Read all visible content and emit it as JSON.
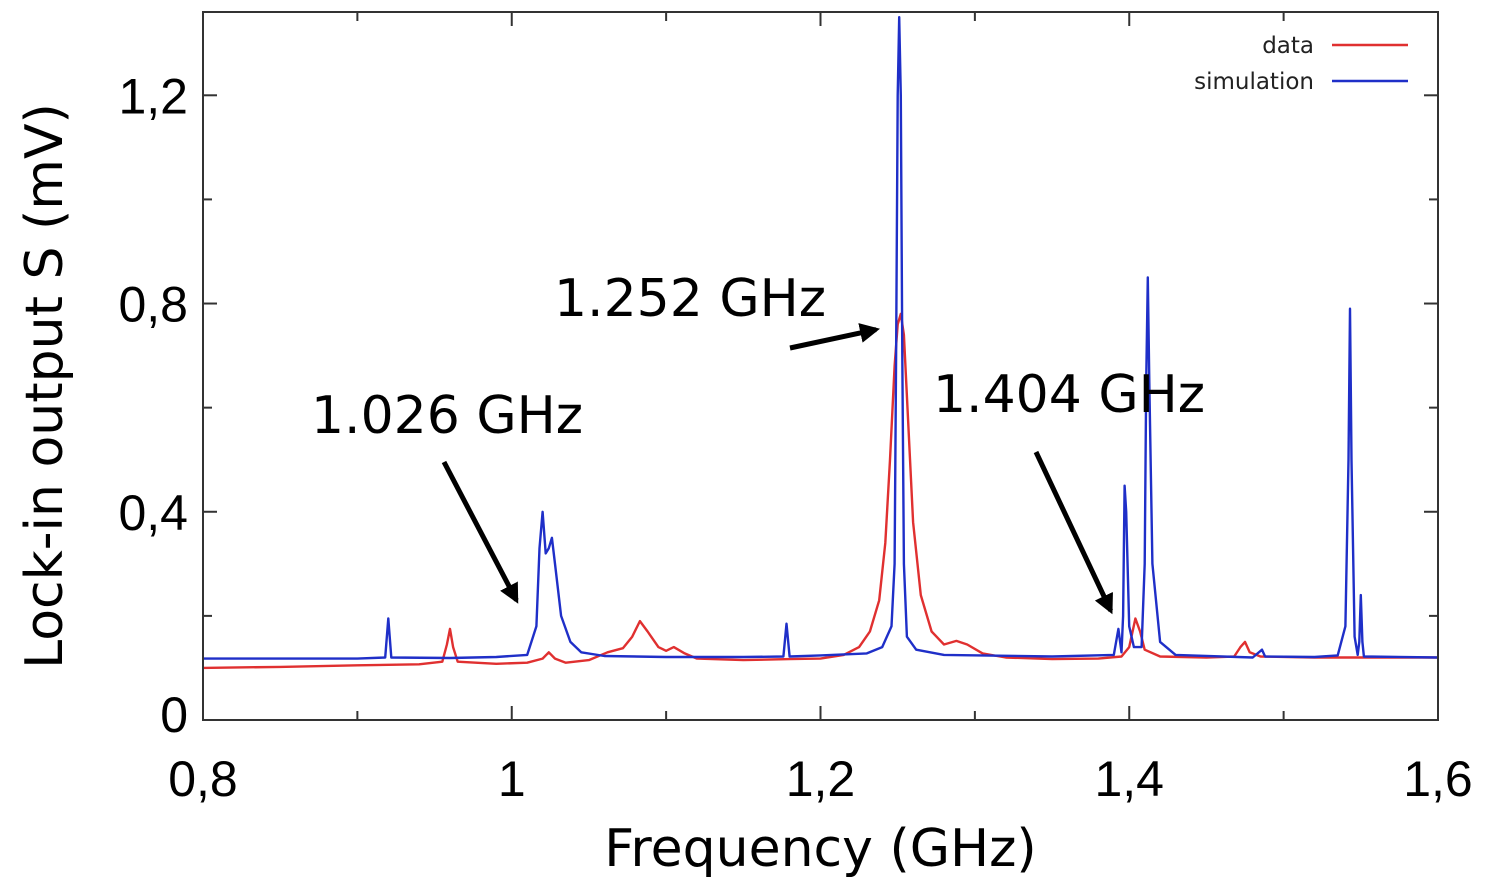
{
  "chart_data": {
    "type": "line",
    "title": "",
    "xlabel": "Frequency (GHz)",
    "ylabel": "Lock-in output S (mV)",
    "xlim": [
      0.8,
      1.6
    ],
    "ylim": [
      0,
      1.36
    ],
    "x_ticks": [
      {
        "value": 0.8,
        "label": "0,8"
      },
      {
        "value": 1.0,
        "label": "1"
      },
      {
        "value": 1.2,
        "label": "1,2"
      },
      {
        "value": 1.4,
        "label": "1,4"
      },
      {
        "value": 1.6,
        "label": "1,6"
      }
    ],
    "y_ticks": [
      {
        "value": 0,
        "label": "0"
      },
      {
        "value": 0.4,
        "label": "0,4"
      },
      {
        "value": 0.8,
        "label": "0,8"
      },
      {
        "value": 1.2,
        "label": "1,2"
      }
    ],
    "grid": false,
    "legend": {
      "position": "top-right",
      "entries": [
        {
          "label": "data",
          "color": "#e03030"
        },
        {
          "label": "simulation",
          "color": "#1f2fc8"
        }
      ]
    },
    "series": [
      {
        "name": "data",
        "color": "#e03030",
        "points": [
          [
            0.8,
            0.1
          ],
          [
            0.85,
            0.102
          ],
          [
            0.9,
            0.105
          ],
          [
            0.94,
            0.107
          ],
          [
            0.955,
            0.112
          ],
          [
            0.958,
            0.145
          ],
          [
            0.96,
            0.175
          ],
          [
            0.962,
            0.14
          ],
          [
            0.965,
            0.112
          ],
          [
            0.99,
            0.108
          ],
          [
            1.01,
            0.11
          ],
          [
            1.02,
            0.118
          ],
          [
            1.024,
            0.13
          ],
          [
            1.028,
            0.118
          ],
          [
            1.035,
            0.11
          ],
          [
            1.05,
            0.115
          ],
          [
            1.062,
            0.13
          ],
          [
            1.072,
            0.138
          ],
          [
            1.078,
            0.16
          ],
          [
            1.083,
            0.19
          ],
          [
            1.088,
            0.17
          ],
          [
            1.095,
            0.14
          ],
          [
            1.1,
            0.133
          ],
          [
            1.105,
            0.14
          ],
          [
            1.112,
            0.128
          ],
          [
            1.12,
            0.118
          ],
          [
            1.15,
            0.115
          ],
          [
            1.18,
            0.117
          ],
          [
            1.2,
            0.118
          ],
          [
            1.215,
            0.125
          ],
          [
            1.225,
            0.14
          ],
          [
            1.232,
            0.17
          ],
          [
            1.238,
            0.23
          ],
          [
            1.242,
            0.34
          ],
          [
            1.245,
            0.5
          ],
          [
            1.248,
            0.68
          ],
          [
            1.25,
            0.76
          ],
          [
            1.252,
            0.78
          ],
          [
            1.254,
            0.74
          ],
          [
            1.257,
            0.56
          ],
          [
            1.26,
            0.38
          ],
          [
            1.265,
            0.24
          ],
          [
            1.272,
            0.17
          ],
          [
            1.28,
            0.145
          ],
          [
            1.288,
            0.152
          ],
          [
            1.295,
            0.145
          ],
          [
            1.305,
            0.128
          ],
          [
            1.32,
            0.12
          ],
          [
            1.35,
            0.117
          ],
          [
            1.38,
            0.118
          ],
          [
            1.395,
            0.122
          ],
          [
            1.4,
            0.14
          ],
          [
            1.404,
            0.195
          ],
          [
            1.407,
            0.17
          ],
          [
            1.41,
            0.135
          ],
          [
            1.42,
            0.122
          ],
          [
            1.45,
            0.12
          ],
          [
            1.468,
            0.122
          ],
          [
            1.472,
            0.14
          ],
          [
            1.475,
            0.15
          ],
          [
            1.478,
            0.13
          ],
          [
            1.485,
            0.122
          ],
          [
            1.52,
            0.12
          ],
          [
            1.56,
            0.12
          ],
          [
            1.6,
            0.12
          ]
        ]
      },
      {
        "name": "simulation",
        "color": "#1f2fc8",
        "points": [
          [
            0.8,
            0.118
          ],
          [
            0.9,
            0.118
          ],
          [
            0.918,
            0.12
          ],
          [
            0.92,
            0.195
          ],
          [
            0.922,
            0.12
          ],
          [
            0.96,
            0.119
          ],
          [
            0.99,
            0.121
          ],
          [
            1.01,
            0.125
          ],
          [
            1.016,
            0.18
          ],
          [
            1.018,
            0.33
          ],
          [
            1.02,
            0.4
          ],
          [
            1.022,
            0.32
          ],
          [
            1.024,
            0.33
          ],
          [
            1.026,
            0.35
          ],
          [
            1.028,
            0.3
          ],
          [
            1.032,
            0.2
          ],
          [
            1.038,
            0.15
          ],
          [
            1.045,
            0.13
          ],
          [
            1.06,
            0.123
          ],
          [
            1.1,
            0.121
          ],
          [
            1.15,
            0.121
          ],
          [
            1.176,
            0.122
          ],
          [
            1.178,
            0.185
          ],
          [
            1.18,
            0.122
          ],
          [
            1.2,
            0.124
          ],
          [
            1.23,
            0.128
          ],
          [
            1.24,
            0.14
          ],
          [
            1.246,
            0.18
          ],
          [
            1.248,
            0.3
          ],
          [
            1.249,
            0.7
          ],
          [
            1.25,
            1.2
          ],
          [
            1.251,
            1.35
          ],
          [
            1.252,
            1.2
          ],
          [
            1.253,
            0.7
          ],
          [
            1.254,
            0.3
          ],
          [
            1.256,
            0.16
          ],
          [
            1.262,
            0.135
          ],
          [
            1.28,
            0.125
          ],
          [
            1.35,
            0.122
          ],
          [
            1.39,
            0.125
          ],
          [
            1.393,
            0.175
          ],
          [
            1.395,
            0.13
          ],
          [
            1.396,
            0.2
          ],
          [
            1.397,
            0.45
          ],
          [
            1.398,
            0.4
          ],
          [
            1.4,
            0.18
          ],
          [
            1.403,
            0.14
          ],
          [
            1.408,
            0.14
          ],
          [
            1.41,
            0.3
          ],
          [
            1.411,
            0.65
          ],
          [
            1.412,
            0.85
          ],
          [
            1.413,
            0.65
          ],
          [
            1.415,
            0.3
          ],
          [
            1.42,
            0.15
          ],
          [
            1.43,
            0.125
          ],
          [
            1.48,
            0.12
          ],
          [
            1.486,
            0.135
          ],
          [
            1.488,
            0.122
          ],
          [
            1.52,
            0.121
          ],
          [
            1.535,
            0.124
          ],
          [
            1.54,
            0.18
          ],
          [
            1.542,
            0.5
          ],
          [
            1.543,
            0.79
          ],
          [
            1.544,
            0.5
          ],
          [
            1.546,
            0.16
          ],
          [
            1.548,
            0.125
          ],
          [
            1.549,
            0.15
          ],
          [
            1.55,
            0.24
          ],
          [
            1.551,
            0.15
          ],
          [
            1.552,
            0.122
          ],
          [
            1.6,
            0.12
          ]
        ]
      }
    ],
    "annotations": [
      {
        "text": "1.026 GHz",
        "target": [
          1.003,
          0.23
        ]
      },
      {
        "text": "1.252 GHz",
        "target": [
          1.236,
          0.75
        ]
      },
      {
        "text": "1.404 GHz",
        "target": [
          1.388,
          0.21
        ]
      }
    ]
  }
}
